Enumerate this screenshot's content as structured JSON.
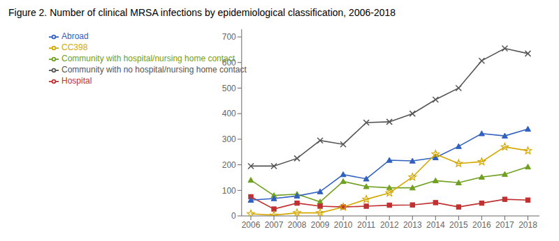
{
  "chart_data": {
    "type": "line",
    "title": "Figure 2. Number of clinical MRSA infections by epidemiological classification, 2006-2018",
    "x": [
      2006,
      2007,
      2008,
      2009,
      2010,
      2011,
      2012,
      2013,
      2014,
      2015,
      2016,
      2017,
      2018
    ],
    "xlim": [
      2005.6,
      2018.5
    ],
    "xticks": [
      2006,
      2007,
      2008,
      2009,
      2010,
      2011,
      2012,
      2013,
      2014,
      2015,
      2016,
      2017,
      2018
    ],
    "ylim": [
      0,
      730
    ],
    "yticks": [
      0,
      100,
      200,
      300,
      400,
      500,
      600,
      700
    ],
    "grid": false,
    "legend": "upper left",
    "series": [
      {
        "name": "Community with no hospital/nursing home contact",
        "color": "#555555",
        "marker": "x",
        "values": [
          195,
          195,
          225,
          295,
          280,
          365,
          368,
          400,
          455,
          500,
          607,
          655,
          635
        ]
      },
      {
        "name": "Community with hospital/nursing home contact",
        "color": "#70a020",
        "marker": "triangle",
        "values": [
          140,
          80,
          85,
          55,
          135,
          115,
          110,
          110,
          138,
          130,
          152,
          163,
          192
        ]
      },
      {
        "name": "Hospital",
        "color": "#c03030",
        "marker": "square",
        "values": [
          75,
          27,
          50,
          38,
          35,
          38,
          42,
          43,
          52,
          35,
          50,
          65,
          62
        ]
      },
      {
        "name": "Abroad",
        "color": "#3060c0",
        "marker": "triangle",
        "values": [
          62,
          68,
          78,
          95,
          162,
          145,
          218,
          215,
          228,
          272,
          322,
          313,
          340
        ]
      },
      {
        "name": "CC398",
        "color": "#d4a800",
        "marker": "star",
        "values": [
          8,
          3,
          12,
          12,
          35,
          65,
          90,
          152,
          242,
          205,
          212,
          270,
          255
        ]
      }
    ]
  }
}
